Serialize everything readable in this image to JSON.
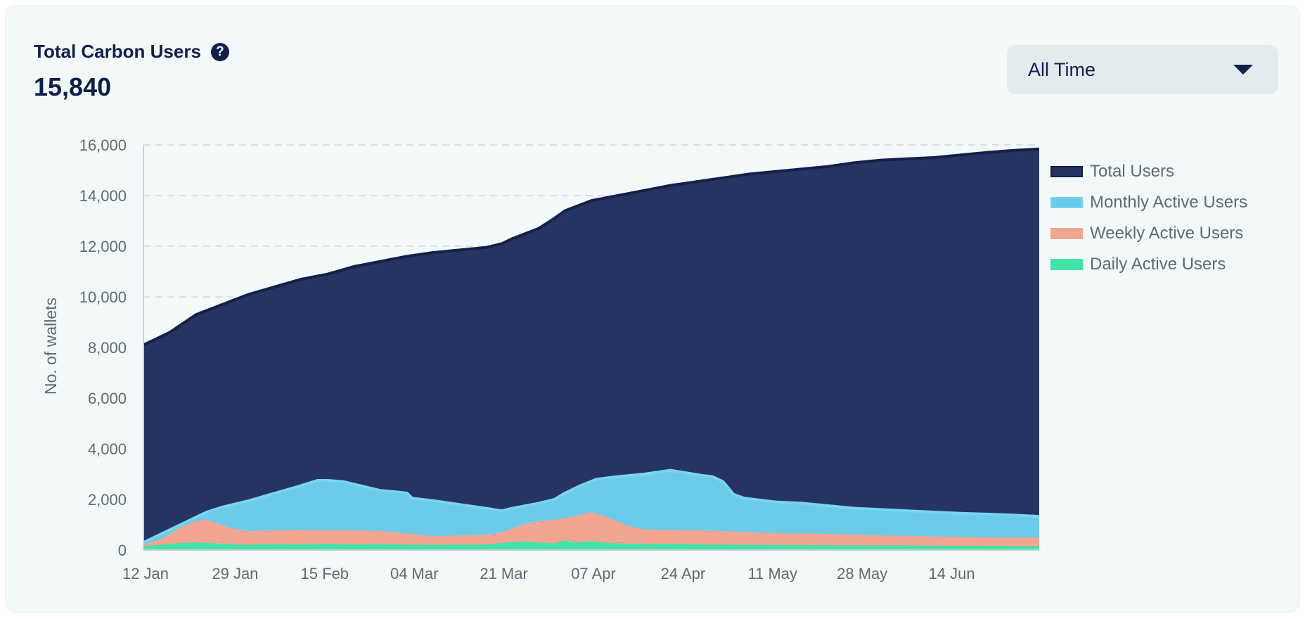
{
  "header": {
    "title": "Total Carbon Users",
    "total_value": "15,840",
    "help_icon": "question-circle-icon"
  },
  "time_filter": {
    "selected": "All Time",
    "icon": "caret-down-icon"
  },
  "colors": {
    "background": "#f3f9f9",
    "total_users": "#263461",
    "total_users_line": "#13214a",
    "monthly_active": "#6bcbe9",
    "monthly_active_line": "#79d4f2",
    "weekly_active": "#f2a692",
    "daily_active": "#43e3a7",
    "text_dark": "#10204a",
    "text_muted": "#5f6a73"
  },
  "chart_data": {
    "type": "area",
    "ylabel": "No. of wallets",
    "xlabel": "",
    "ylim": [
      0,
      16000
    ],
    "y_ticks": [
      0,
      2000,
      4000,
      6000,
      8000,
      10000,
      12000,
      14000,
      16000
    ],
    "y_tick_labels": [
      "0",
      "2,000",
      "4,000",
      "6,000",
      "8,000",
      "10,000",
      "12,000",
      "14,000",
      "16,000"
    ],
    "x_tick_labels": [
      "12 Jan",
      "29 Jan",
      "15 Feb",
      "04 Mar",
      "21 Mar",
      "07 Apr",
      "24 Apr",
      "11 May",
      "28 May",
      "14 Jun"
    ],
    "x_tick_days": [
      0,
      17,
      34,
      51,
      68,
      85,
      102,
      119,
      136,
      153
    ],
    "grid": true,
    "legend_position": "right",
    "series": [
      {
        "name": "Total Users",
        "color": "#263461",
        "points": [
          [
            0,
            8100
          ],
          [
            5,
            8600
          ],
          [
            10,
            9300
          ],
          [
            15,
            9700
          ],
          [
            20,
            10100
          ],
          [
            25,
            10400
          ],
          [
            30,
            10700
          ],
          [
            35,
            10900
          ],
          [
            40,
            11200
          ],
          [
            45,
            11400
          ],
          [
            50,
            11600
          ],
          [
            55,
            11750
          ],
          [
            60,
            11850
          ],
          [
            65,
            11950
          ],
          [
            68,
            12100
          ],
          [
            70,
            12300
          ],
          [
            75,
            12700
          ],
          [
            78,
            13100
          ],
          [
            80,
            13400
          ],
          [
            85,
            13800
          ],
          [
            90,
            14000
          ],
          [
            95,
            14200
          ],
          [
            100,
            14400
          ],
          [
            105,
            14550
          ],
          [
            110,
            14700
          ],
          [
            115,
            14850
          ],
          [
            120,
            14950
          ],
          [
            125,
            15050
          ],
          [
            130,
            15150
          ],
          [
            135,
            15300
          ],
          [
            140,
            15400
          ],
          [
            145,
            15450
          ],
          [
            150,
            15500
          ],
          [
            155,
            15600
          ],
          [
            160,
            15700
          ],
          [
            165,
            15780
          ],
          [
            170,
            15840
          ]
        ]
      },
      {
        "name": "Monthly Active Users",
        "color": "#6bcbe9",
        "points": [
          [
            0,
            300
          ],
          [
            5,
            800
          ],
          [
            10,
            1300
          ],
          [
            12,
            1500
          ],
          [
            15,
            1700
          ],
          [
            18,
            1850
          ],
          [
            20,
            1950
          ],
          [
            25,
            2250
          ],
          [
            30,
            2550
          ],
          [
            33,
            2750
          ],
          [
            35,
            2750
          ],
          [
            38,
            2700
          ],
          [
            42,
            2500
          ],
          [
            45,
            2350
          ],
          [
            48,
            2300
          ],
          [
            50,
            2250
          ],
          [
            51,
            2050
          ],
          [
            55,
            1950
          ],
          [
            60,
            1800
          ],
          [
            65,
            1650
          ],
          [
            68,
            1550
          ],
          [
            70,
            1650
          ],
          [
            75,
            1850
          ],
          [
            78,
            2000
          ],
          [
            80,
            2250
          ],
          [
            83,
            2550
          ],
          [
            86,
            2800
          ],
          [
            90,
            2900
          ],
          [
            95,
            3000
          ],
          [
            100,
            3150
          ],
          [
            103,
            3050
          ],
          [
            106,
            2950
          ],
          [
            108,
            2900
          ],
          [
            110,
            2700
          ],
          [
            112,
            2200
          ],
          [
            114,
            2050
          ],
          [
            120,
            1900
          ],
          [
            125,
            1850
          ],
          [
            130,
            1750
          ],
          [
            135,
            1650
          ],
          [
            140,
            1600
          ],
          [
            145,
            1550
          ],
          [
            150,
            1500
          ],
          [
            155,
            1450
          ],
          [
            160,
            1420
          ],
          [
            165,
            1380
          ],
          [
            170,
            1330
          ]
        ]
      },
      {
        "name": "Weekly Active Users",
        "color": "#f2a692",
        "points": [
          [
            0,
            200
          ],
          [
            4,
            500
          ],
          [
            7,
            900
          ],
          [
            10,
            1150
          ],
          [
            12,
            1200
          ],
          [
            14,
            1050
          ],
          [
            17,
            850
          ],
          [
            20,
            750
          ],
          [
            25,
            780
          ],
          [
            30,
            800
          ],
          [
            35,
            780
          ],
          [
            40,
            780
          ],
          [
            45,
            750
          ],
          [
            50,
            650
          ],
          [
            55,
            550
          ],
          [
            60,
            580
          ],
          [
            65,
            600
          ],
          [
            68,
            700
          ],
          [
            72,
            1000
          ],
          [
            75,
            1150
          ],
          [
            78,
            1200
          ],
          [
            80,
            1250
          ],
          [
            83,
            1400
          ],
          [
            85,
            1500
          ],
          [
            88,
            1300
          ],
          [
            92,
            950
          ],
          [
            95,
            820
          ],
          [
            100,
            800
          ],
          [
            105,
            780
          ],
          [
            110,
            750
          ],
          [
            115,
            700
          ],
          [
            120,
            670
          ],
          [
            125,
            650
          ],
          [
            130,
            640
          ],
          [
            135,
            600
          ],
          [
            140,
            580
          ],
          [
            145,
            560
          ],
          [
            150,
            540
          ],
          [
            155,
            520
          ],
          [
            160,
            510
          ],
          [
            165,
            500
          ],
          [
            170,
            490
          ]
        ]
      },
      {
        "name": "Daily Active Users",
        "color": "#43e3a7",
        "points": [
          [
            0,
            150
          ],
          [
            5,
            250
          ],
          [
            10,
            300
          ],
          [
            15,
            250
          ],
          [
            20,
            220
          ],
          [
            25,
            240
          ],
          [
            30,
            230
          ],
          [
            35,
            250
          ],
          [
            40,
            230
          ],
          [
            45,
            240
          ],
          [
            50,
            220
          ],
          [
            55,
            210
          ],
          [
            60,
            220
          ],
          [
            65,
            220
          ],
          [
            68,
            280
          ],
          [
            72,
            340
          ],
          [
            75,
            300
          ],
          [
            78,
            260
          ],
          [
            80,
            380
          ],
          [
            82,
            300
          ],
          [
            85,
            350
          ],
          [
            88,
            280
          ],
          [
            92,
            250
          ],
          [
            95,
            240
          ],
          [
            100,
            250
          ],
          [
            105,
            230
          ],
          [
            110,
            220
          ],
          [
            115,
            210
          ],
          [
            120,
            200
          ],
          [
            125,
            200
          ],
          [
            130,
            190
          ],
          [
            135,
            190
          ],
          [
            140,
            180
          ],
          [
            145,
            180
          ],
          [
            150,
            175
          ],
          [
            155,
            170
          ],
          [
            160,
            170
          ],
          [
            165,
            165
          ],
          [
            170,
            160
          ]
        ]
      }
    ]
  }
}
